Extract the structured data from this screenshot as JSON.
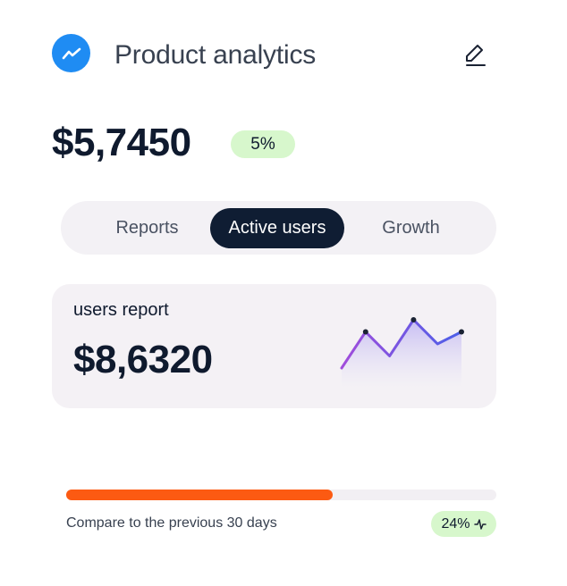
{
  "header": {
    "brand_icon": "trending-line-icon",
    "title": "Product analytics",
    "edit_icon": "pencil-icon"
  },
  "summary": {
    "amount": "$5,7450",
    "change": "5%"
  },
  "tabs": [
    {
      "label": "Reports",
      "active": false
    },
    {
      "label": "Active users",
      "active": true
    },
    {
      "label": "Growth",
      "active": false
    }
  ],
  "report": {
    "label": "users report",
    "amount": "$8,6320",
    "sparkline": {
      "type": "area",
      "values": [
        1,
        4,
        2,
        5,
        3,
        4
      ],
      "line_color_start": "#a14ddb",
      "line_color_end": "#4b5fe8"
    }
  },
  "progress": {
    "fraction": 0.62,
    "color": "#fc5a12",
    "caption": "Compare to the previous 30 days",
    "badge": "24%",
    "badge_icon": "activity-icon"
  },
  "colors": {
    "brand": "#1f8cf3",
    "dark": "#0f1d33",
    "badge_green": "#d7f7cc"
  }
}
